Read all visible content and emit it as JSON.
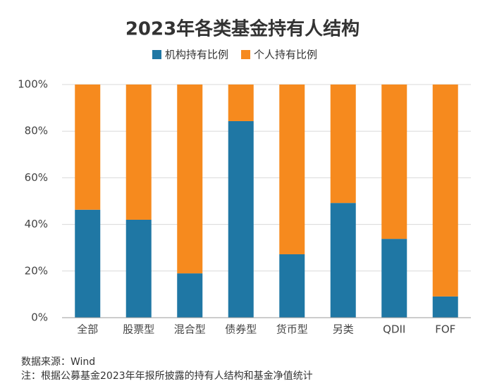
{
  "chart_data": {
    "type": "stacked_bar",
    "title": "2023年各类基金持有人结构",
    "categories": [
      "全部",
      "股票型",
      "混合型",
      "债券型",
      "货币型",
      "另类",
      "QDII",
      "FOF"
    ],
    "series": [
      {
        "name": "机构持有比例",
        "color": "#1f77a4",
        "values": [
          46.3,
          42,
          19,
          84.3,
          27.2,
          49.2,
          33.8,
          9.1
        ]
      },
      {
        "name": "个人持有比例",
        "color": "#f68a1e",
        "values": [
          53.7,
          58,
          81,
          15.7,
          72.8,
          50.8,
          66.2,
          90.9
        ]
      }
    ],
    "ylim": [
      0,
      100
    ],
    "yticks": [
      {
        "value": 0,
        "label": "0%"
      },
      {
        "value": 20,
        "label": "20%"
      },
      {
        "value": 40,
        "label": "40%"
      },
      {
        "value": 60,
        "label": "60%"
      },
      {
        "value": 80,
        "label": "80%"
      },
      {
        "value": 100,
        "label": "100%"
      }
    ],
    "grid": true,
    "notes": [
      "数据来源：Wind",
      "注：根据公募基金2023年年报所披露的持有人结构和基金净值统计"
    ]
  }
}
